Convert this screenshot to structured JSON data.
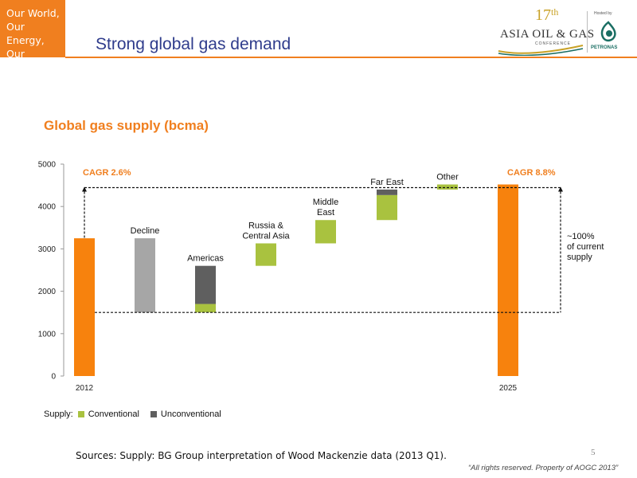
{
  "brand": {
    "lines": [
      "Our World,",
      "Our Energy,",
      "Our Destiny."
    ]
  },
  "header": {
    "title": "Strong global gas demand"
  },
  "conference": {
    "number": "17",
    "suffix": "th",
    "name": "ASIA OIL & GAS",
    "subtitle": "CONFERENCE",
    "hosted_by": "Hosted by",
    "host": "PETRONAS"
  },
  "colors": {
    "orange": "#f7820d",
    "decline": "#a6a6a6",
    "conventional": "#a9c23f",
    "unconventional": "#5f5f5f",
    "accent": "#f07f1f"
  },
  "chart_data": {
    "type": "bar",
    "title": "Global gas supply (bcma)",
    "ylim": [
      0,
      5000
    ],
    "yticks": [
      0,
      1000,
      2000,
      3000,
      4000,
      5000
    ],
    "categories": [
      "2012",
      "Decline",
      "Americas",
      "Russia & Central Asia",
      "Middle East",
      "Far East",
      "Other",
      "2025"
    ],
    "category_axis_labels": [
      "2012",
      "2025"
    ],
    "label_lines": {
      "Decline": [
        "Decline"
      ],
      "Americas": [
        "Americas"
      ],
      "Russia & Central Asia": [
        "Russia &",
        "Central Asia"
      ],
      "Middle East": [
        "Middle",
        "East"
      ],
      "Far East": [
        "Far East"
      ],
      "Other": [
        "Other"
      ]
    },
    "bars": [
      {
        "category": "2012",
        "kind": "total",
        "segments": [
          {
            "type": "total",
            "start": 0,
            "end": 3250
          }
        ]
      },
      {
        "category": "Decline",
        "kind": "decline",
        "segments": [
          {
            "type": "decline",
            "start": 1500,
            "end": 3250
          }
        ]
      },
      {
        "category": "Americas",
        "kind": "increase",
        "segments": [
          {
            "type": "conventional",
            "start": 1500,
            "end": 1700
          },
          {
            "type": "unconventional",
            "start": 1700,
            "end": 2600
          }
        ]
      },
      {
        "category": "Russia & Central Asia",
        "kind": "increase",
        "segments": [
          {
            "type": "conventional",
            "start": 2600,
            "end": 3130
          }
        ]
      },
      {
        "category": "Middle East",
        "kind": "increase",
        "segments": [
          {
            "type": "conventional",
            "start": 3130,
            "end": 3680
          }
        ]
      },
      {
        "category": "Far East",
        "kind": "increase",
        "segments": [
          {
            "type": "conventional",
            "start": 3680,
            "end": 4270
          },
          {
            "type": "unconventional",
            "start": 4270,
            "end": 4400
          }
        ]
      },
      {
        "category": "Other",
        "kind": "increase",
        "segments": [
          {
            "type": "conventional",
            "start": 4400,
            "end": 4520
          }
        ]
      },
      {
        "category": "2025",
        "kind": "total",
        "segments": [
          {
            "type": "total",
            "start": 0,
            "end": 4520
          }
        ]
      }
    ],
    "bracket": {
      "low": 1500,
      "high": 4520
    },
    "annotations": {
      "cagr_left": "CAGR 2.6%",
      "cagr_right": "CAGR 8.8%",
      "supply_note": [
        "~100%",
        "of current",
        "supply"
      ]
    },
    "legend": {
      "title": "Supply:",
      "items": [
        {
          "name": "Conventional",
          "color": "#a9c23f"
        },
        {
          "name": "Unconventional",
          "color": "#5f5f5f"
        }
      ]
    },
    "grid": false
  },
  "footer": {
    "sources": "Sources: Supply: BG Group interpretation of Wood Mackenzie data (2013 Q1).",
    "page": "5",
    "rights": "“All rights reserved. Property of AOGC 2013”"
  }
}
